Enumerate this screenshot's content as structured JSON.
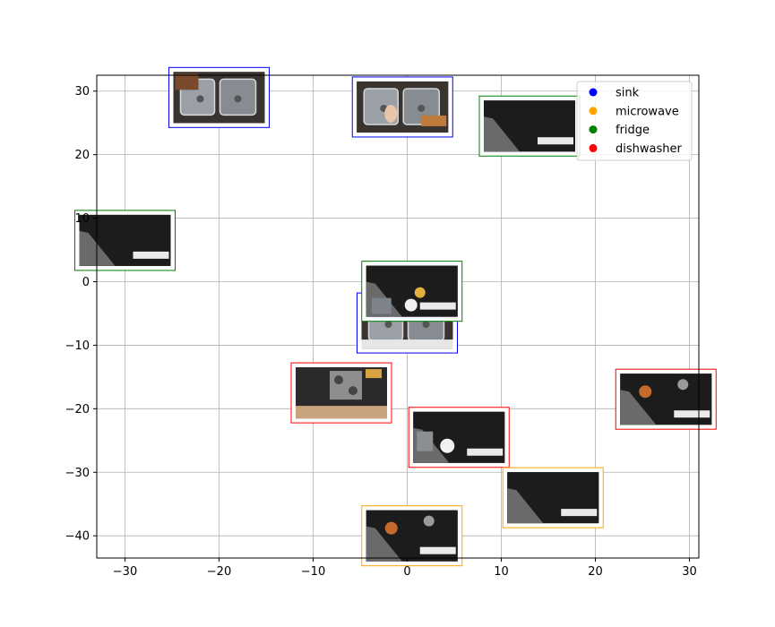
{
  "chart_data": {
    "type": "scatter",
    "title": "",
    "xlabel": "",
    "ylabel": "",
    "xlim": [
      -33,
      31
    ],
    "ylim": [
      -43.5,
      32.5
    ],
    "xticks": [
      -30,
      -20,
      -10,
      0,
      10,
      20,
      30
    ],
    "yticks": [
      -40,
      -30,
      -20,
      -10,
      0,
      10,
      20,
      30
    ],
    "xtick_labels": [
      "−30",
      "−20",
      "−10",
      "0",
      "10",
      "20",
      "30"
    ],
    "ytick_labels": [
      "−40",
      "−30",
      "−20",
      "−10",
      "0",
      "10",
      "20",
      "30"
    ],
    "grid": true,
    "legend_position": "top-right",
    "series": [
      {
        "name": "sink",
        "color": "#0000ff",
        "points": [
          {
            "x": -20,
            "y": 29
          },
          {
            "x": -0.5,
            "y": 27.5
          },
          {
            "x": 0,
            "y": -6.5
          }
        ]
      },
      {
        "name": "microwave",
        "color": "#ffa500",
        "points": [
          {
            "x": 15.5,
            "y": -34
          },
          {
            "x": 0.5,
            "y": -40
          }
        ]
      },
      {
        "name": "fridge",
        "color": "#008000",
        "points": [
          {
            "x": 13,
            "y": 24.5
          },
          {
            "x": -30,
            "y": 6.5
          },
          {
            "x": 0.5,
            "y": -1.5
          }
        ]
      },
      {
        "name": "dishwasher",
        "color": "#ff0000",
        "points": [
          {
            "x": -7,
            "y": -17.5
          },
          {
            "x": 5.5,
            "y": -24.5
          },
          {
            "x": 27.5,
            "y": -18.5
          }
        ]
      }
    ],
    "thumbnails": [
      {
        "category": "sink",
        "x": -20,
        "y": 29,
        "scene": "sink-rack"
      },
      {
        "category": "sink",
        "x": -0.5,
        "y": 27.5,
        "scene": "sink-hand"
      },
      {
        "category": "sink",
        "x": 0,
        "y": -6.5,
        "scene": "sink-basin"
      },
      {
        "category": "fridge",
        "x": 13,
        "y": 24.5,
        "scene": "counter-dark"
      },
      {
        "category": "fridge",
        "x": -30,
        "y": 6.5,
        "scene": "counter-dark"
      },
      {
        "category": "dishwasher",
        "x": -7,
        "y": -17.5,
        "scene": "stove"
      },
      {
        "category": "dishwasher",
        "x": 5.5,
        "y": -24.5,
        "scene": "counter-glass"
      },
      {
        "category": "dishwasher",
        "x": 27.5,
        "y": -18.5,
        "scene": "counter-bowl"
      },
      {
        "category": "microwave",
        "x": 15.5,
        "y": -34,
        "scene": "counter-dark"
      },
      {
        "category": "microwave",
        "x": 0.5,
        "y": -40,
        "scene": "counter-bowl"
      },
      {
        "category": "fridge",
        "x": 0.5,
        "y": -1.5,
        "scene": "counter-food"
      }
    ]
  }
}
